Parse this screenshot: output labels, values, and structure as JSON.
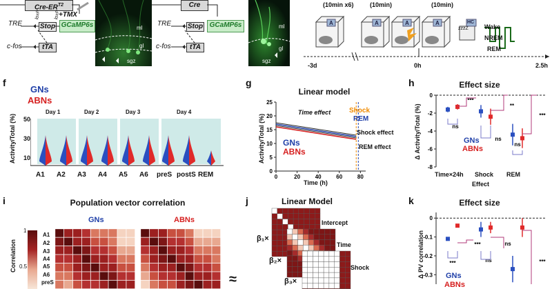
{
  "panel_top_left": {
    "cre_er_label": "Cre-ER",
    "cre_er_sup": "T2",
    "tmx_label": "+TMX",
    "stop_label": "Stop",
    "loxp_label": "loxP",
    "gcamp_label": "GCaMP6s",
    "tre_label": "TRE",
    "cfos_label": "c-fos",
    "tta_label": "tTA",
    "micro_ml": "ml",
    "micro_gl": "gl",
    "micro_sgz": "sgz"
  },
  "panel_top_mid": {
    "cre_label": "Cre",
    "stop_label": "Stop",
    "gcamp_label": "GCaMP6s",
    "tre_label": "TRE",
    "cfos_label": "c-fos",
    "tta_label": "tTA",
    "micro_ml": "ml",
    "micro_gl": "gl",
    "micro_sgz": "sgz"
  },
  "panel_timeline": {
    "durations": [
      "(10min x6)",
      "(10min)",
      "(10min)"
    ],
    "box_letters": [
      "A",
      "A",
      "A",
      "A",
      "A",
      "HC"
    ],
    "sleep_label": "zzzZ",
    "states": [
      "Wake",
      "NREM",
      "REM"
    ],
    "time_labels": [
      "-3d",
      "0h",
      "2.5h"
    ]
  },
  "panel_f": {
    "letter": "f",
    "legend_gn": "GNs",
    "legend_abn": "ABNs",
    "ylabel": "Activity/Total (%)",
    "days": [
      "Day 1",
      "Day 2",
      "Day 3",
      "Day 4"
    ],
    "categories": [
      "A1",
      "A2",
      "A3",
      "A4",
      "A5",
      "A6",
      "preS",
      "postS",
      "REM"
    ],
    "yticks": [
      "50",
      "30",
      "10"
    ]
  },
  "panel_g": {
    "letter": "g",
    "title": "Linear model",
    "ylabel": "Activity/Total (%)",
    "xlabel": "Time (h)",
    "annotations": [
      "Time effect",
      "Shock",
      "REM",
      "Shock effect",
      "REM effect"
    ],
    "legend_gn": "GNs",
    "legend_abn": "ABNs",
    "yticks": [
      "25",
      "20",
      "15",
      "10",
      "5",
      "0"
    ],
    "xticks": [
      "0",
      "20",
      "40",
      "60",
      "80"
    ]
  },
  "panel_h": {
    "letter": "h",
    "title": "Effect size",
    "ylabel": "Δ Activity/Total (%)",
    "xlabel": "Effect",
    "categories": [
      "Time×24h",
      "Shock",
      "REM"
    ],
    "yticks": [
      "0",
      "-2",
      "-4",
      "-6",
      "-8"
    ],
    "sig": [
      "***",
      "**",
      "***",
      "ns",
      "ns",
      "ns"
    ],
    "legend_gn": "GNs",
    "legend_abn": "ABNs"
  },
  "panel_i": {
    "letter": "i",
    "title": "Population vector correlation",
    "group_gn": "GNs",
    "group_abn": "ABNs",
    "colorbar_label": "Correlation",
    "colorbar_ticks": [
      "1",
      "0.5"
    ],
    "row_labels": [
      "A1",
      "A2",
      "A3",
      "A4",
      "A5",
      "A6",
      "preS"
    ],
    "approx": "≈"
  },
  "panel_j": {
    "letter": "j",
    "title": "Linear Model",
    "terms": [
      "Intercept",
      "Time",
      "Shock"
    ],
    "betas": [
      "β₁×",
      "β₂×",
      "β₃×"
    ]
  },
  "panel_k": {
    "letter": "k",
    "title": "Effect size",
    "ylabel": "Δ PV correlation",
    "yticks": [
      "0",
      "-0.1",
      "-0.2",
      "-0.3"
    ],
    "sig": [
      "***",
      "***",
      "ns",
      "ns",
      "***"
    ],
    "legend_gn": "GNs",
    "legend_abn": "ABNs"
  },
  "chart_data": [
    {
      "type": "scatter",
      "panel": "h",
      "title": "Effect size",
      "xlabel": "Effect",
      "ylabel": "Δ Activity/Total (%)",
      "categories": [
        "Time×24h",
        "Shock",
        "REM"
      ],
      "ylim": [
        -8,
        0
      ],
      "series": [
        {
          "name": "GNs",
          "values": [
            -1.6,
            -1.8,
            -4.4
          ],
          "err": [
            0.3,
            0.7,
            1.2
          ]
        },
        {
          "name": "ABNs",
          "values": [
            -1.3,
            -2.4,
            -4.8
          ],
          "err": [
            0.3,
            0.9,
            1.1
          ]
        }
      ]
    },
    {
      "type": "scatter",
      "panel": "k",
      "title": "Effect size",
      "ylabel": "Δ PV correlation",
      "categories": [
        "Time×24h",
        "Shock",
        "REM"
      ],
      "ylim": [
        -0.35,
        0.03
      ],
      "series": [
        {
          "name": "GNs",
          "values": [
            -0.11,
            -0.06,
            -0.27
          ],
          "err": [
            0.01,
            0.04,
            0.07
          ]
        },
        {
          "name": "ABNs",
          "values": [
            -0.04,
            -0.05,
            -0.05
          ],
          "err": [
            0.01,
            0.03,
            0.05
          ]
        }
      ]
    },
    {
      "type": "line",
      "panel": "g",
      "title": "Linear model",
      "xlabel": "Time (h)",
      "ylabel": "Activity/Total (%)",
      "xlim": [
        0,
        85
      ],
      "ylim": [
        0,
        25
      ],
      "series": [
        {
          "name": "GNs",
          "x": [
            0,
            76
          ],
          "y": [
            17,
            12.5
          ]
        },
        {
          "name": "ABNs",
          "x": [
            0,
            76
          ],
          "y": [
            16,
            11.5
          ]
        }
      ]
    }
  ]
}
